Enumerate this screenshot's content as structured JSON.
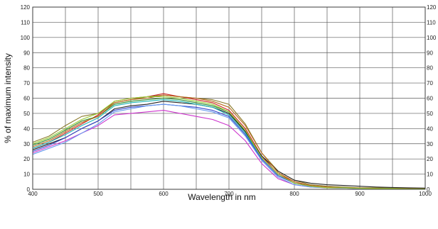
{
  "chart_data": {
    "type": "line",
    "title": "",
    "xlabel": "Wavelength in nm",
    "ylabel": "% of maximum intensity",
    "xlim": [
      400,
      1000
    ],
    "ylim": [
      0,
      120
    ],
    "xticks": [
      400,
      500,
      600,
      700,
      800,
      900,
      1000
    ],
    "xgrid": [
      400,
      450,
      500,
      550,
      600,
      650,
      700,
      750,
      800,
      850,
      900,
      950,
      1000
    ],
    "yticks": [
      0,
      10,
      20,
      30,
      40,
      50,
      60,
      70,
      80,
      90,
      100,
      110,
      120
    ],
    "grid": true,
    "legend": "none",
    "x": [
      400,
      425,
      450,
      475,
      500,
      525,
      550,
      575,
      600,
      625,
      650,
      675,
      700,
      725,
      750,
      775,
      800,
      825,
      850,
      875,
      900,
      925,
      950,
      975,
      1000
    ],
    "series": [
      {
        "color": "#cc2222",
        "values": [
          27,
          31,
          37,
          43,
          49,
          58,
          60,
          61,
          63,
          61,
          59,
          57,
          52,
          40,
          22,
          10,
          5,
          2,
          1,
          1,
          0.5,
          0.5,
          0.5,
          0.3,
          0.2
        ]
      },
      {
        "color": "#8a7a2a",
        "values": [
          31,
          35,
          42,
          48,
          50,
          57,
          59,
          61,
          62,
          61,
          60,
          59,
          56,
          43,
          24,
          12,
          6,
          3,
          2,
          1.5,
          1,
          1,
          0.8,
          0.6,
          0.5
        ]
      },
      {
        "color": "#2d8a2d",
        "values": [
          29,
          33,
          39,
          45,
          48,
          56,
          58,
          59,
          60,
          59,
          57,
          55,
          51,
          38,
          21,
          10,
          4,
          2,
          1,
          1,
          0.5,
          0.5,
          0.5,
          0.3,
          0.2
        ]
      },
      {
        "color": "#222222",
        "values": [
          26,
          30,
          34,
          40,
          45,
          53,
          55,
          56,
          58,
          57,
          56,
          54,
          50,
          38,
          22,
          12,
          6,
          4,
          3,
          2.5,
          2,
          1.5,
          1.2,
          1,
          0.8
        ]
      },
      {
        "color": "#1fb5b5",
        "values": [
          27,
          31,
          36,
          42,
          47,
          55,
          57,
          58,
          59,
          58,
          56,
          54,
          49,
          37,
          20,
          9,
          4,
          2,
          1,
          0.8,
          0.5,
          0.5,
          0.4,
          0.3,
          0.2
        ]
      },
      {
        "color": "#3344cc",
        "values": [
          25,
          29,
          34,
          40,
          45,
          52,
          54,
          55,
          56,
          55,
          54,
          52,
          48,
          36,
          20,
          9,
          4,
          2,
          1,
          1,
          0.5,
          0.5,
          0.4,
          0.3,
          0.2
        ]
      },
      {
        "color": "#cc33cc",
        "values": [
          24,
          28,
          32,
          37,
          42,
          49,
          50,
          51,
          52,
          50,
          48,
          46,
          42,
          32,
          17,
          7,
          3,
          1.5,
          1,
          0.8,
          0.5,
          0.5,
          0.3,
          0.2,
          0.1
        ]
      },
      {
        "color": "#6699ee",
        "values": [
          23,
          27,
          31,
          37,
          43,
          51,
          53,
          55,
          56,
          55,
          53,
          51,
          47,
          35,
          19,
          8,
          3,
          1.5,
          1,
          0.8,
          0.5,
          0.5,
          0.3,
          0.2,
          0.1
        ]
      },
      {
        "color": "#b86b1e",
        "values": [
          28,
          32,
          38,
          44,
          48,
          57,
          59,
          60,
          62,
          61,
          60,
          58,
          54,
          42,
          24,
          11,
          5,
          2.5,
          1.5,
          1,
          0.8,
          0.6,
          0.5,
          0.4,
          0.3
        ]
      },
      {
        "color": "#99cc33",
        "values": [
          30,
          34,
          40,
          46,
          50,
          58,
          60,
          61,
          61,
          60,
          58,
          56,
          51,
          39,
          21,
          10,
          4,
          2,
          1,
          1,
          0.6,
          0.5,
          0.4,
          0.3,
          0.2
        ]
      }
    ]
  }
}
